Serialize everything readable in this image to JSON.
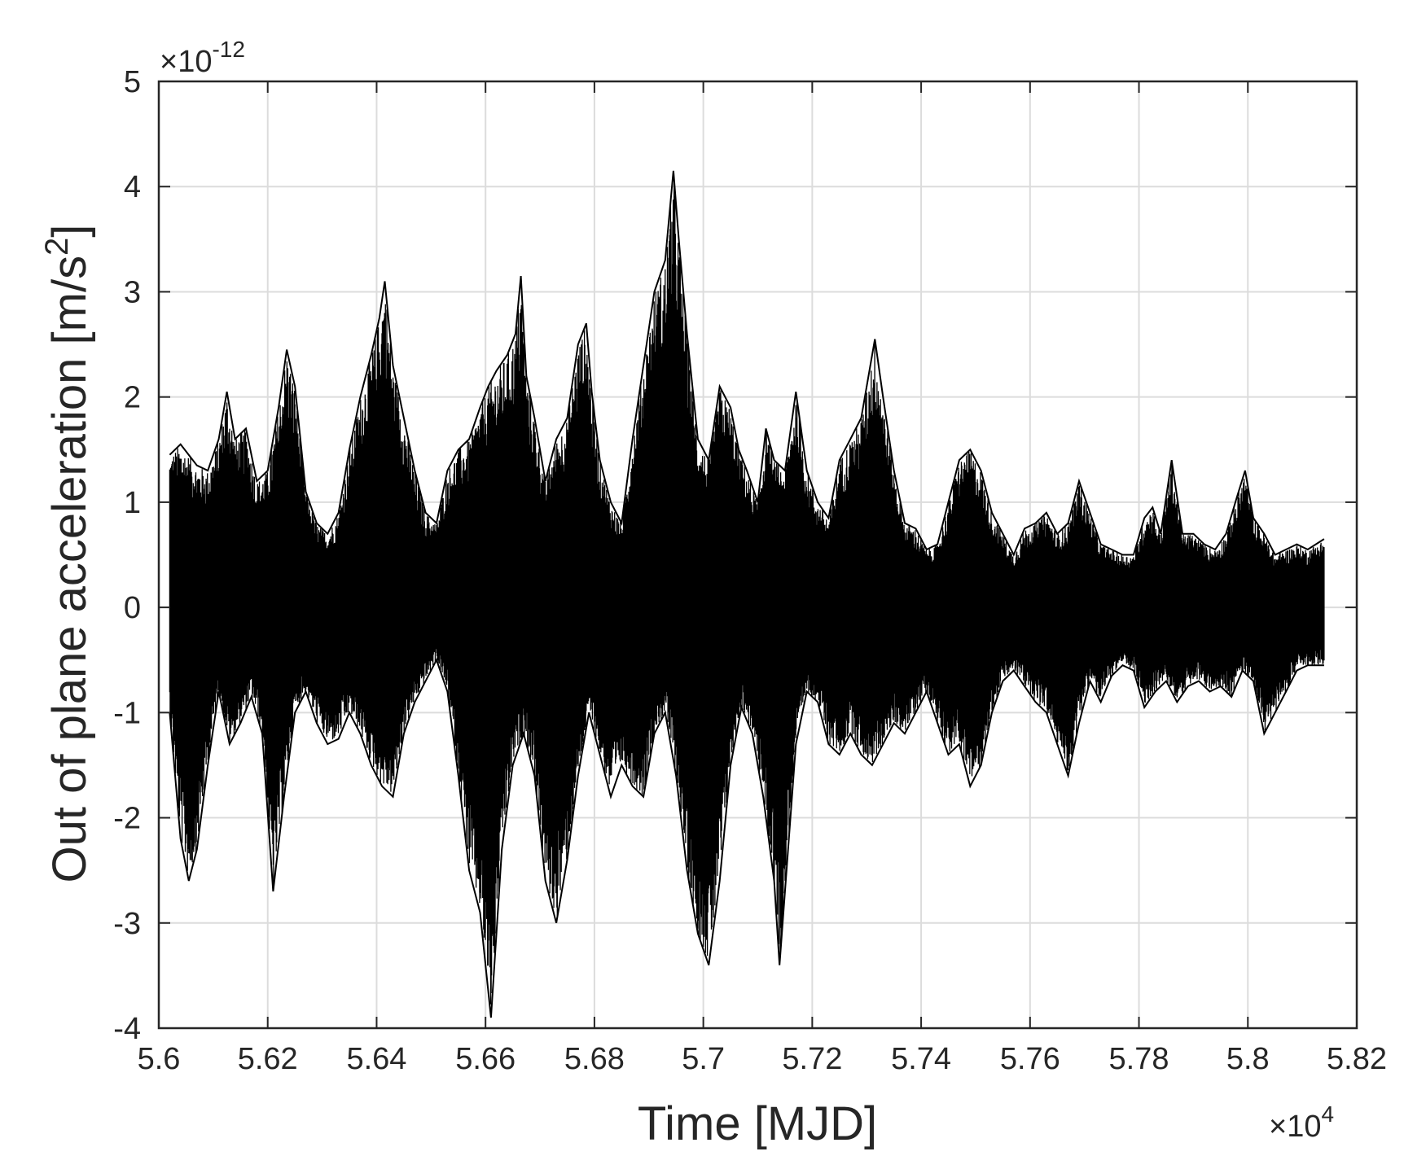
{
  "chart_data": {
    "type": "line",
    "xlabel": "Time [MJD]",
    "ylabel_parts": {
      "main": "Out of plane acceleration [m/s",
      "sup": "2",
      "end": "]"
    },
    "x_multiplier": {
      "text": "×10",
      "sup": "4"
    },
    "y_multiplier": {
      "text": "×10",
      "sup": "-12"
    },
    "xlim": [
      5.6,
      5.82
    ],
    "ylim": [
      -4,
      5
    ],
    "x_ticks": [
      5.6,
      5.62,
      5.64,
      5.66,
      5.68,
      5.7,
      5.72,
      5.74,
      5.76,
      5.78,
      5.8,
      5.82
    ],
    "x_tick_labels": [
      "5.6",
      "5.62",
      "5.64",
      "5.66",
      "5.68",
      "5.7",
      "5.72",
      "5.74",
      "5.76",
      "5.78",
      "5.8",
      "5.82"
    ],
    "y_ticks": [
      -4,
      -3,
      -2,
      -1,
      0,
      1,
      2,
      3,
      4,
      5
    ],
    "y_tick_labels": [
      "-4",
      "-3",
      "-2",
      "-1",
      "0",
      "1",
      "2",
      "3",
      "4",
      "5"
    ],
    "grid": true,
    "series_color": "#000000",
    "data_range_x": [
      5.602,
      5.814
    ],
    "upper_envelope": {
      "x": [
        5.602,
        5.604,
        5.607,
        5.609,
        5.611,
        5.6125,
        5.614,
        5.616,
        5.618,
        5.62,
        5.622,
        5.6235,
        5.625,
        5.627,
        5.629,
        5.631,
        5.633,
        5.635,
        5.637,
        5.639,
        5.6405,
        5.6415,
        5.643,
        5.645,
        5.647,
        5.649,
        5.651,
        5.653,
        5.655,
        5.657,
        5.659,
        5.6605,
        5.662,
        5.664,
        5.6655,
        5.6665,
        5.6675,
        5.669,
        5.671,
        5.673,
        5.675,
        5.677,
        5.6785,
        5.6795,
        5.681,
        5.683,
        5.685,
        5.687,
        5.689,
        5.691,
        5.693,
        5.6945,
        5.6955,
        5.697,
        5.699,
        5.701,
        5.703,
        5.705,
        5.7065,
        5.708,
        5.71,
        5.7115,
        5.713,
        5.715,
        5.717,
        5.719,
        5.721,
        5.723,
        5.725,
        5.727,
        5.729,
        5.7315,
        5.733,
        5.735,
        5.737,
        5.739,
        5.741,
        5.743,
        5.745,
        5.747,
        5.749,
        5.751,
        5.753,
        5.755,
        5.757,
        5.759,
        5.761,
        5.763,
        5.765,
        5.767,
        5.769,
        5.771,
        5.773,
        5.775,
        5.777,
        5.779,
        5.781,
        5.7825,
        5.784,
        5.786,
        5.788,
        5.79,
        5.792,
        5.794,
        5.796,
        5.798,
        5.7995,
        5.801,
        5.803,
        5.805,
        5.807,
        5.809,
        5.811,
        5.814
      ],
      "y": [
        1.45,
        1.55,
        1.35,
        1.3,
        1.6,
        2.05,
        1.6,
        1.7,
        1.2,
        1.3,
        1.9,
        2.45,
        2.1,
        1.1,
        0.8,
        0.7,
        0.9,
        1.5,
        2.0,
        2.4,
        2.75,
        3.1,
        2.3,
        1.8,
        1.3,
        0.9,
        0.8,
        1.3,
        1.5,
        1.6,
        1.9,
        2.1,
        2.25,
        2.4,
        2.6,
        3.15,
        2.2,
        1.8,
        1.2,
        1.6,
        1.8,
        2.5,
        2.7,
        2.05,
        1.4,
        1.0,
        0.8,
        1.6,
        2.3,
        3.0,
        3.3,
        4.15,
        3.5,
        2.6,
        1.6,
        1.4,
        2.1,
        1.9,
        1.5,
        1.3,
        1.0,
        1.7,
        1.4,
        1.3,
        2.05,
        1.3,
        1.0,
        0.85,
        1.4,
        1.6,
        1.8,
        2.55,
        2.0,
        1.3,
        0.8,
        0.75,
        0.55,
        0.6,
        1.0,
        1.4,
        1.5,
        1.3,
        0.9,
        0.7,
        0.5,
        0.75,
        0.8,
        0.9,
        0.7,
        0.8,
        1.2,
        0.9,
        0.6,
        0.55,
        0.5,
        0.5,
        0.85,
        0.95,
        0.7,
        1.4,
        0.7,
        0.7,
        0.6,
        0.55,
        0.7,
        1.05,
        1.3,
        0.85,
        0.7,
        0.5,
        0.55,
        0.6,
        0.55,
        0.65
      ]
    },
    "lower_envelope": {
      "x": [
        5.602,
        5.604,
        5.6055,
        5.607,
        5.609,
        5.611,
        5.613,
        5.615,
        5.617,
        5.619,
        5.621,
        5.623,
        5.625,
        5.627,
        5.629,
        5.631,
        5.633,
        5.635,
        5.637,
        5.639,
        5.641,
        5.643,
        5.645,
        5.647,
        5.649,
        5.651,
        5.653,
        5.655,
        5.657,
        5.659,
        5.661,
        5.662,
        5.663,
        5.665,
        5.667,
        5.669,
        5.671,
        5.673,
        5.675,
        5.677,
        5.679,
        5.681,
        5.683,
        5.685,
        5.687,
        5.689,
        5.691,
        5.693,
        5.695,
        5.697,
        5.699,
        5.701,
        5.703,
        5.705,
        5.707,
        5.709,
        5.711,
        5.713,
        5.714,
        5.715,
        5.717,
        5.719,
        5.721,
        5.723,
        5.725,
        5.727,
        5.729,
        5.731,
        5.733,
        5.735,
        5.737,
        5.739,
        5.741,
        5.743,
        5.745,
        5.747,
        5.749,
        5.751,
        5.753,
        5.755,
        5.757,
        5.759,
        5.761,
        5.763,
        5.765,
        5.767,
        5.769,
        5.771,
        5.773,
        5.775,
        5.777,
        5.779,
        5.781,
        5.783,
        5.785,
        5.787,
        5.789,
        5.791,
        5.793,
        5.795,
        5.797,
        5.799,
        5.801,
        5.803,
        5.805,
        5.807,
        5.809,
        5.811,
        5.814
      ],
      "y": [
        -1.0,
        -2.2,
        -2.6,
        -2.3,
        -1.5,
        -0.8,
        -1.3,
        -1.1,
        -0.85,
        -1.2,
        -2.7,
        -1.8,
        -1.0,
        -0.8,
        -1.1,
        -1.3,
        -1.25,
        -1.0,
        -1.2,
        -1.5,
        -1.7,
        -1.8,
        -1.2,
        -0.9,
        -0.7,
        -0.5,
        -0.8,
        -1.6,
        -2.5,
        -2.9,
        -3.9,
        -3.1,
        -2.3,
        -1.5,
        -1.2,
        -1.6,
        -2.6,
        -3.0,
        -2.4,
        -1.6,
        -1.0,
        -1.4,
        -1.8,
        -1.5,
        -1.7,
        -1.8,
        -1.2,
        -1.0,
        -1.6,
        -2.5,
        -3.1,
        -3.4,
        -2.6,
        -1.5,
        -0.95,
        -1.2,
        -1.8,
        -2.6,
        -3.4,
        -2.7,
        -1.3,
        -0.8,
        -0.9,
        -1.3,
        -1.4,
        -1.2,
        -1.4,
        -1.5,
        -1.3,
        -1.1,
        -1.2,
        -1.0,
        -0.8,
        -1.1,
        -1.4,
        -1.3,
        -1.7,
        -1.5,
        -1.0,
        -0.7,
        -0.6,
        -0.75,
        -0.9,
        -1.0,
        -1.3,
        -1.6,
        -1.1,
        -0.7,
        -0.9,
        -0.65,
        -0.55,
        -0.6,
        -0.95,
        -0.8,
        -0.7,
        -0.9,
        -0.75,
        -0.7,
        -0.8,
        -0.75,
        -0.85,
        -0.6,
        -0.7,
        -1.2,
        -1.0,
        -0.8,
        -0.6,
        -0.55,
        -0.55
      ]
    },
    "annotations": []
  }
}
